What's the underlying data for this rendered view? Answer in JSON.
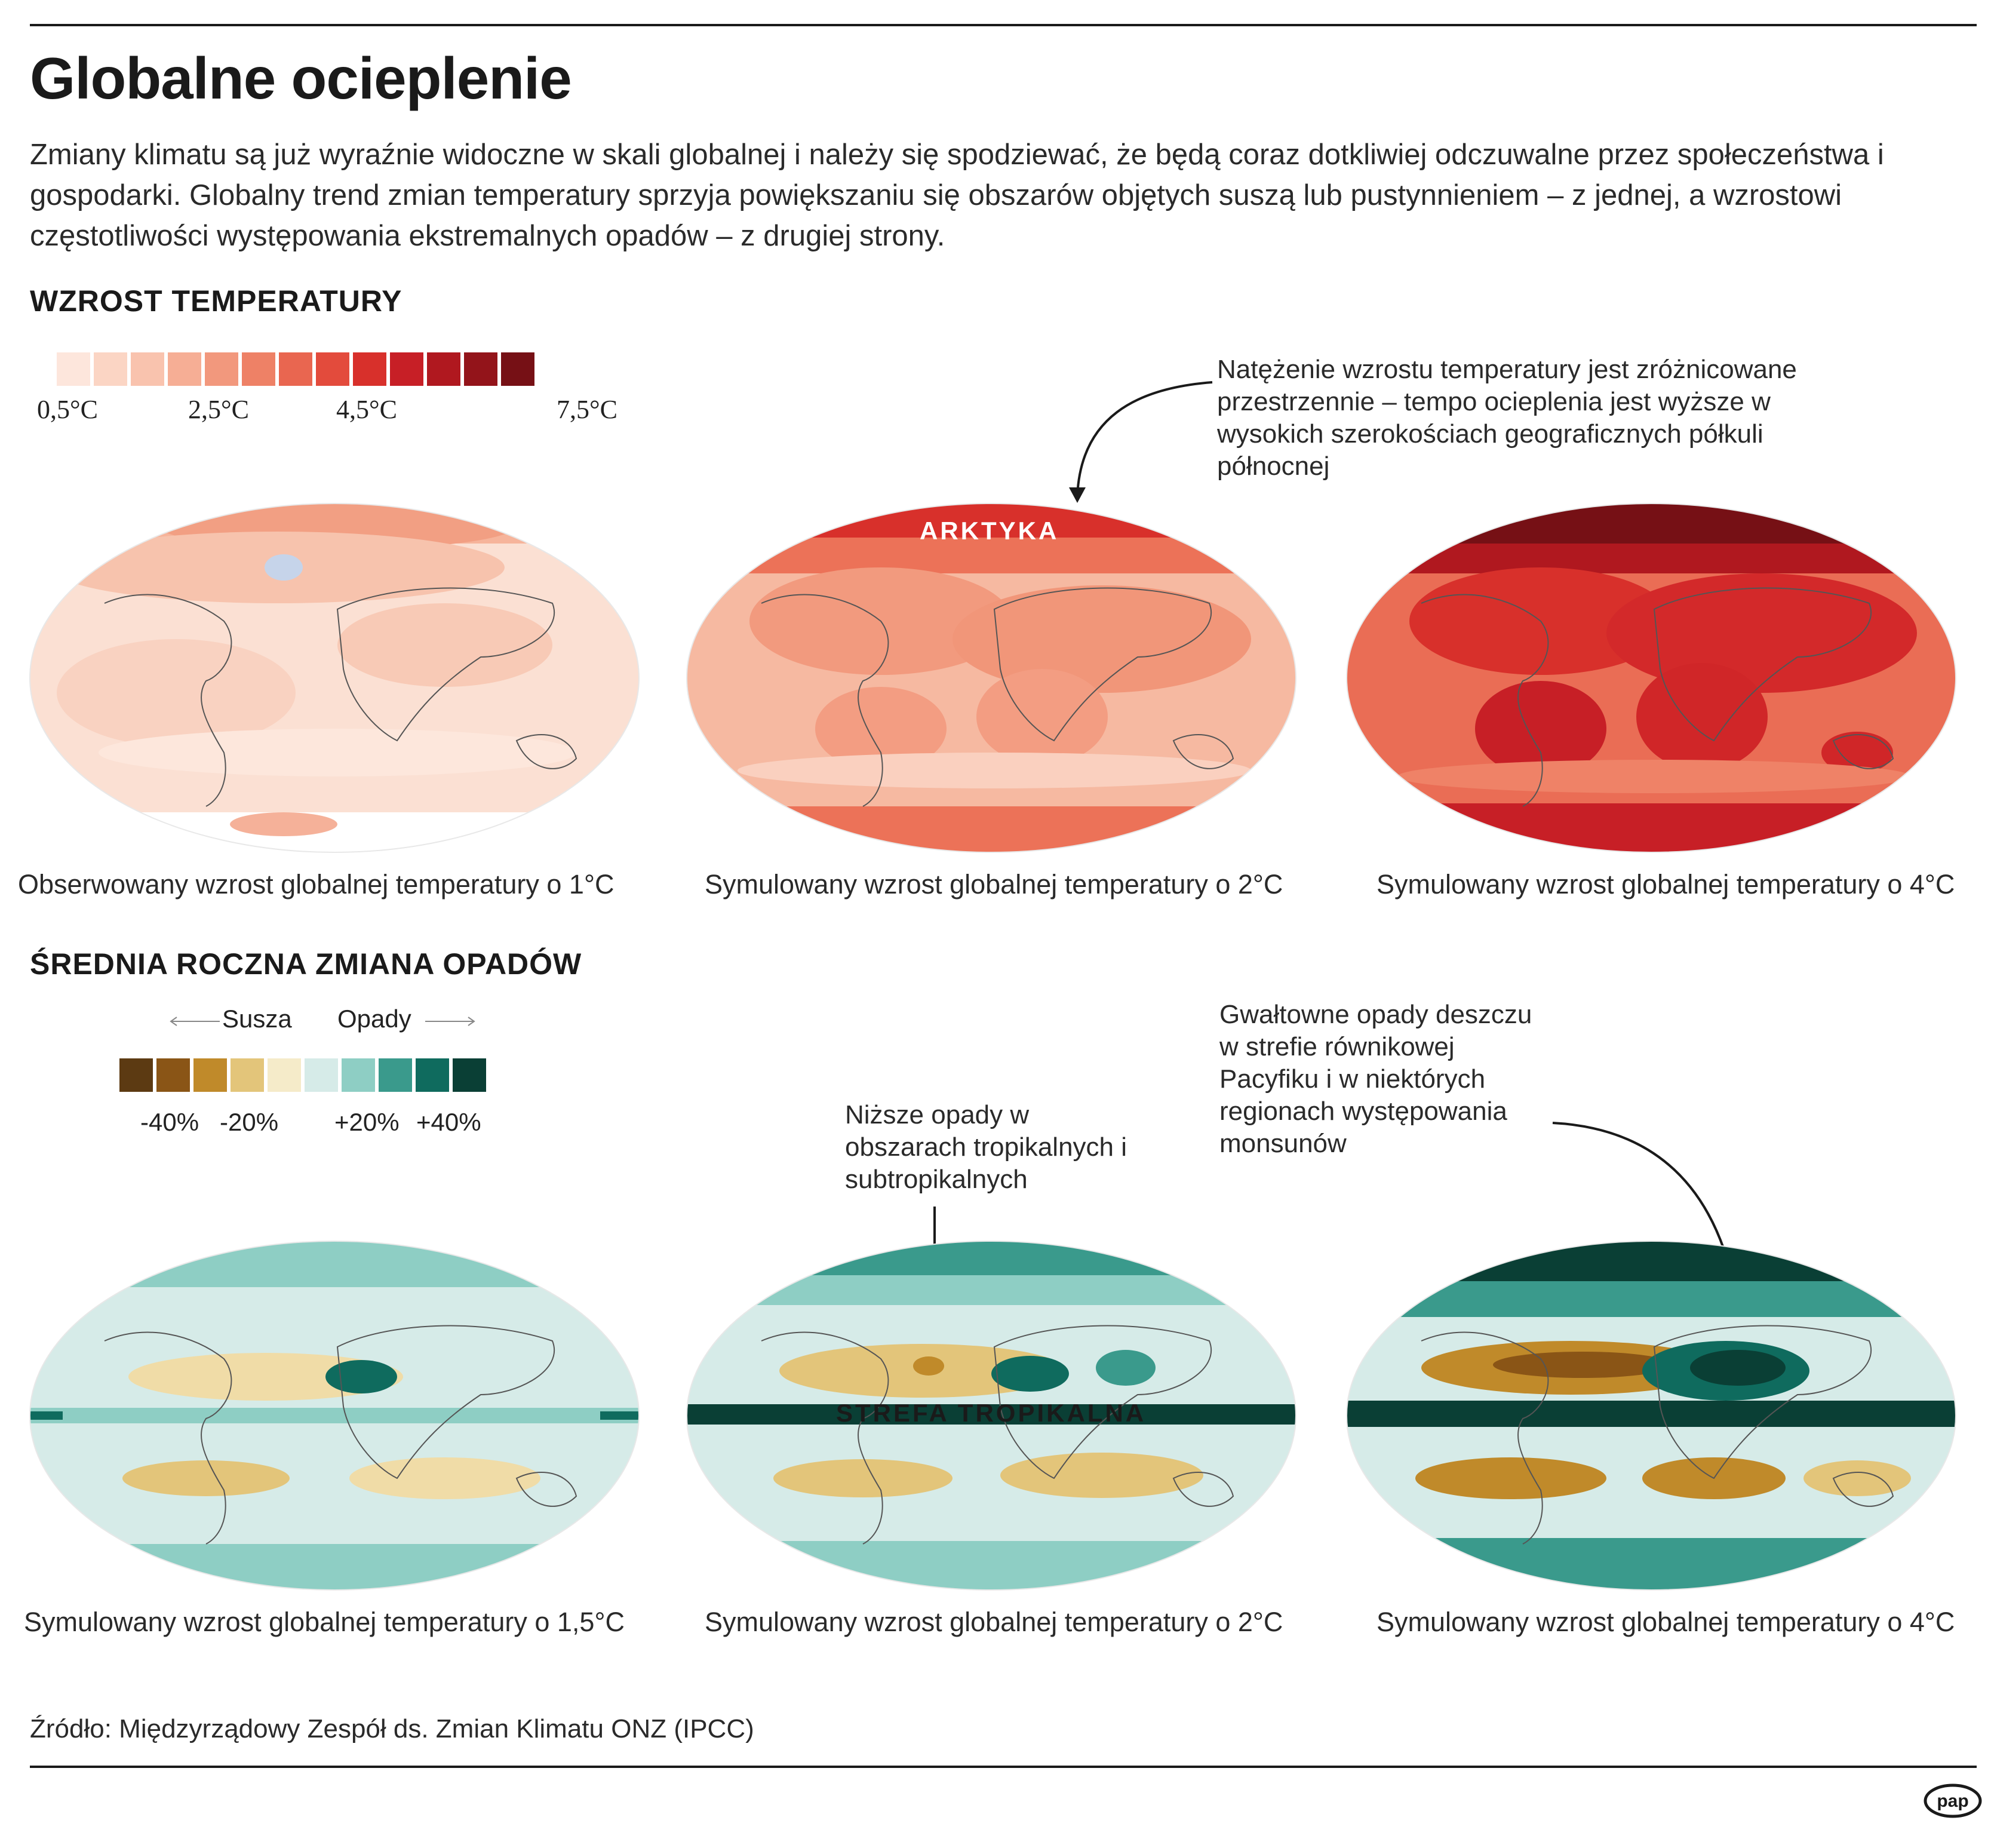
{
  "title": "Globalne ocieplenie",
  "intro": "Zmiany klimatu są już wyraźnie widoczne w skali globalnej i należy się spodziewać, że będą coraz dotkliwiej odczuwalne przez społeczeństwa i gospodarki. Globalny trend zmian temperatury sprzyja powiększaniu się obszarów objętych suszą lub pustynnieniem – z jednej, a wzrostowi częstotliwości występowania ekstremalnych opadów – z drugiej strony.",
  "temperature": {
    "heading": "WZROST TEMPERATURY",
    "legend_colors": [
      "#fde6dc",
      "#fbd5c4",
      "#f9c3ae",
      "#f6ae95",
      "#f2987d",
      "#ee8166",
      "#e96650",
      "#e34b3c",
      "#d8302b",
      "#c71f26",
      "#b0181f",
      "#93141a",
      "#761015"
    ],
    "legend_ticks": [
      "0,5°C",
      "2,5°C",
      "4,5°C",
      "7,5°C"
    ],
    "annotation": "Natężenie wzrostu temperatury jest zróżnicowane przestrzennie – tempo ocieplenia jest wyższe w wysokich szerokościach geograficznych półkuli północnej",
    "map_label": "ARKTYKA",
    "captions": [
      "Obserwowany wzrost globalnej temperatury o 1°C",
      "Symulowany wzrost globalnej temperatury o 2°C",
      "Symulowany wzrost globalnej temperatury o 4°C"
    ]
  },
  "precipitation": {
    "heading": "ŚREDNIA ROCZNA ZMIANA OPADÓW",
    "legend_left": "Susza",
    "legend_right": "Opady",
    "legend_colors": [
      "#5c3a12",
      "#8a5516",
      "#c08a2a",
      "#e3c57a",
      "#f5ebc9",
      "#d6ebe8",
      "#8ecec4",
      "#3a9a8c",
      "#0f6b5e",
      "#0a3f35"
    ],
    "legend_ticks": [
      "-40%",
      "-20%",
      "+20%",
      "+40%"
    ],
    "annotation_tropics": "Niższe opady w obszarach tropikalnych i subtropikalnych",
    "annotation_monsoon": "Gwałtowne opady deszczu w strefie równikowej Pacyfiku i w niektórych regionach występowania monsunów",
    "map_label": "STREFA TROPIKALNA",
    "captions": [
      "Symulowany wzrost globalnej temperatury o 1,5°C",
      "Symulowany wzrost globalnej temperatury o 2°C",
      "Symulowany wzrost globalnej temperatury o 4°C"
    ]
  },
  "source": "Źródło: Międzyrządowy Zespół ds. Zmian Klimatu ONZ (IPCC)",
  "logo": "pap"
}
